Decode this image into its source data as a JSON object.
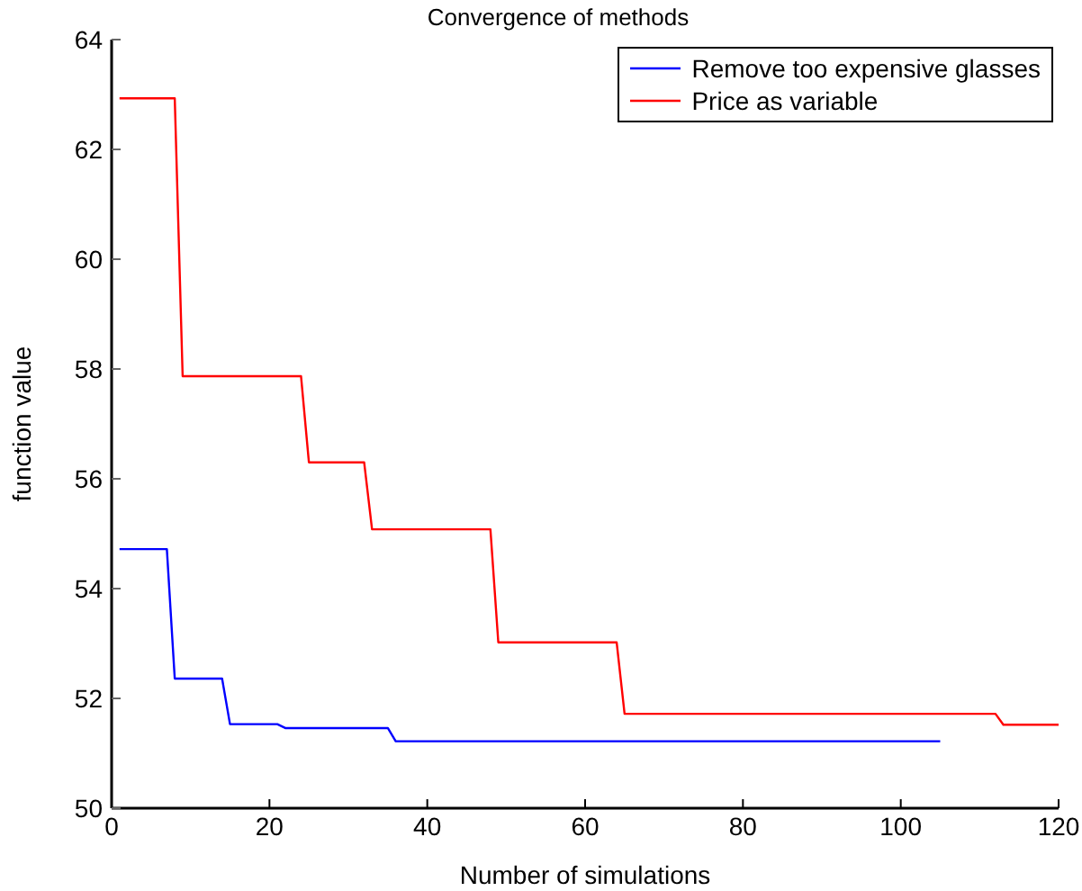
{
  "chart_data": {
    "type": "line",
    "title": "Convergence of methods",
    "xlabel": "Number of simulations",
    "ylabel": "function value",
    "xlim": [
      0,
      120
    ],
    "xticks": [
      0,
      20,
      40,
      60,
      80,
      100,
      120
    ],
    "ylim": [
      50,
      64
    ],
    "yticks": [
      50,
      52,
      54,
      56,
      58,
      60,
      62,
      64
    ],
    "grid": false,
    "legend": "top right",
    "marker": "none",
    "line_style": "solid",
    "series": [
      {
        "name": "Remove too expensive glasses",
        "color": "#0000ff",
        "x": [
          1,
          7,
          8,
          14,
          15,
          21,
          22,
          35,
          36,
          105
        ],
        "values": [
          54.72,
          54.72,
          52.36,
          52.36,
          51.53,
          51.53,
          51.46,
          51.46,
          51.22,
          51.22
        ]
      },
      {
        "name": "Price as variable",
        "color": "#ff0000",
        "x": [
          1,
          8,
          9,
          24,
          25,
          32,
          33,
          48,
          49,
          64,
          65,
          112,
          113,
          120
        ],
        "values": [
          62.93,
          62.93,
          57.87,
          57.87,
          56.3,
          56.3,
          55.08,
          55.08,
          53.02,
          53.02,
          51.72,
          51.72,
          51.52,
          51.52
        ]
      }
    ]
  }
}
